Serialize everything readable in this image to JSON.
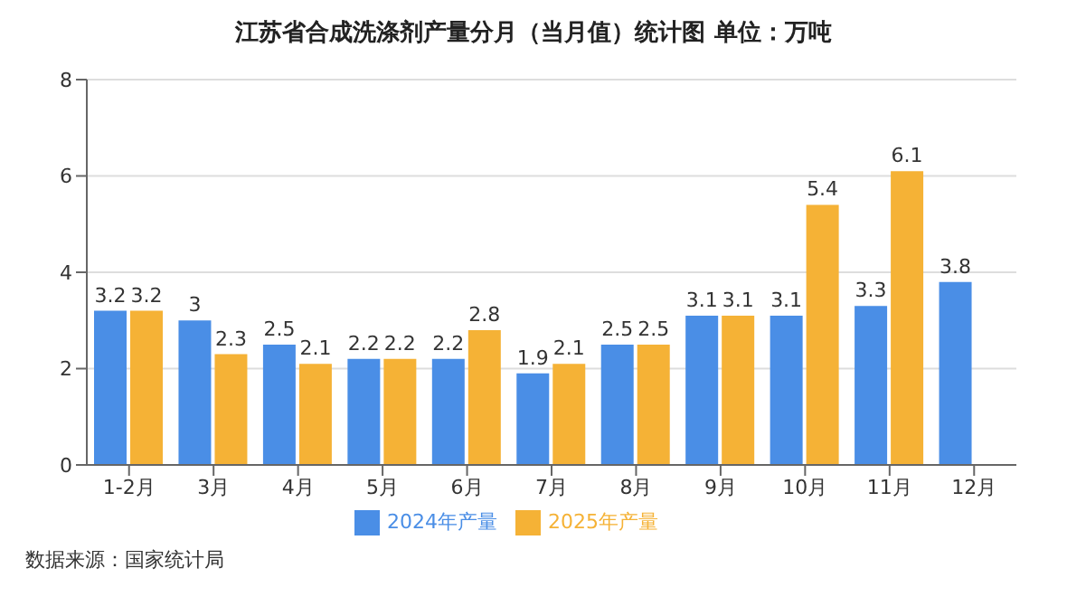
{
  "chart_data": {
    "type": "bar",
    "title": "江苏省合成洗涤剂产量分月（当月值）统计图  单位：万吨",
    "categories": [
      "1-2月",
      "3月",
      "4月",
      "5月",
      "6月",
      "7月",
      "8月",
      "9月",
      "10月",
      "11月",
      "12月"
    ],
    "series": [
      {
        "name": "2024年产量",
        "color": "#4a8ee6",
        "values": [
          3.2,
          3,
          2.5,
          2.2,
          2.2,
          1.9,
          2.5,
          3.1,
          3.1,
          3.3,
          3.8
        ]
      },
      {
        "name": "2025年产量",
        "color": "#f5b236",
        "values": [
          3.2,
          2.3,
          2.1,
          2.2,
          2.8,
          2.1,
          2.5,
          3.1,
          5.4,
          6.1,
          null
        ]
      }
    ],
    "ylim": [
      0,
      8
    ],
    "yticks": [
      0,
      2,
      4,
      6,
      8
    ],
    "grid": "y",
    "legend": "bottom",
    "data_labels": true,
    "annotations": [
      "数据来源：国家统计局"
    ]
  }
}
